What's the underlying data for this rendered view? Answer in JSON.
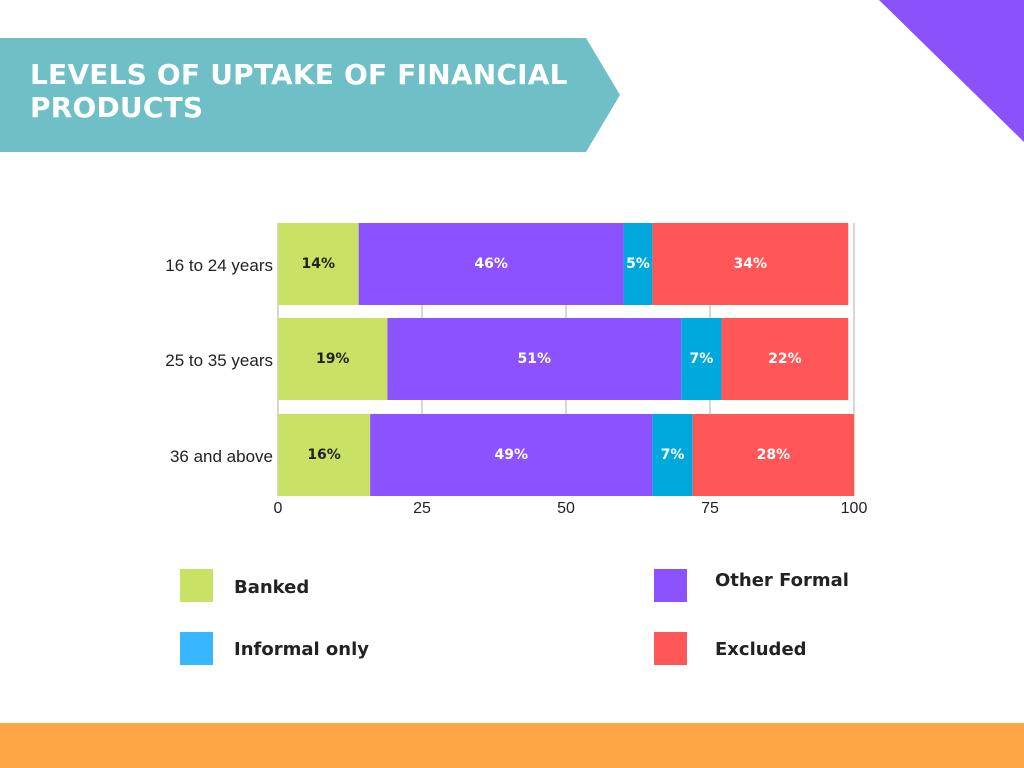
{
  "title": "LEVELS OF UPTAKE OF FINANCIAL PRODUCTS",
  "colors": {
    "banner": "#6fbfc7",
    "corner": "#8b52fb",
    "bottom_bar": "#fea645",
    "banked": "#c9e265",
    "other_formal": "#8c52fe",
    "informal": "#00a9dd",
    "excluded": "#ff5757",
    "legend_informal": "#38b6ff"
  },
  "legend": {
    "banked": "Banked",
    "other_formal": "Other Formal",
    "informal": "Informal only",
    "excluded": "Excluded"
  },
  "chart_data": {
    "type": "bar",
    "orientation": "horizontal",
    "stacked": true,
    "categories": [
      "16 to 24 years",
      "25 to 35 years",
      "36 and above"
    ],
    "series": [
      {
        "name": "Banked",
        "values": [
          14,
          19,
          16
        ],
        "labels": [
          "14%",
          "19%",
          "16%"
        ]
      },
      {
        "name": "Other Formal",
        "values": [
          46,
          51,
          49
        ],
        "labels": [
          "46%",
          "51%",
          "49%"
        ]
      },
      {
        "name": "Informal only",
        "values": [
          5,
          7,
          7
        ],
        "labels": [
          "5%",
          "7%",
          "7%"
        ]
      },
      {
        "name": "Excluded",
        "values": [
          34,
          22,
          28
        ],
        "labels": [
          "34%",
          "22%",
          "28%"
        ]
      }
    ],
    "xlim": [
      0,
      100
    ],
    "xticks": [
      0,
      25,
      50,
      75,
      100
    ],
    "grid": true,
    "legend_position": "bottom"
  }
}
